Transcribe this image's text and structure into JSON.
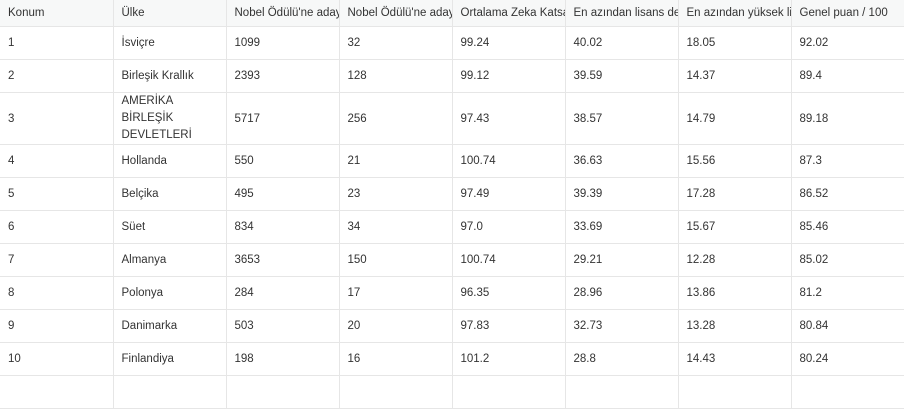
{
  "table": {
    "columns": [
      "Konum",
      "Ülke",
      "Nobel Ödülü'ne aday g",
      "Nobel Ödülü'ne aday g",
      "Ortalama Zeka Katsay",
      "En azından lisans dere",
      "En azından yüksek lisa",
      "Genel puan / 100"
    ],
    "rows": [
      [
        "1",
        "İsviçre",
        "1099",
        "32",
        "99.24",
        "40.02",
        "18.05",
        "92.02"
      ],
      [
        "2",
        "Birleşik Krallık",
        "2393",
        "128",
        "99.12",
        "39.59",
        "14.37",
        "89.4"
      ],
      [
        "3",
        "AMERİKA BİRLEŞİK DEVLETLERİ",
        "5717",
        "256",
        "97.43",
        "38.57",
        "14.79",
        "89.18"
      ],
      [
        "4",
        "Hollanda",
        "550",
        "21",
        "100.74",
        "36.63",
        "15.56",
        "87.3"
      ],
      [
        "5",
        "Belçika",
        "495",
        "23",
        "97.49",
        "39.39",
        "17.28",
        "86.52"
      ],
      [
        "6",
        "Süet",
        "834",
        "34",
        "97.0",
        "33.69",
        "15.67",
        "85.46"
      ],
      [
        "7",
        "Almanya",
        "3653",
        "150",
        "100.74",
        "29.21",
        "12.28",
        "85.02"
      ],
      [
        "8",
        "Polonya",
        "284",
        "17",
        "96.35",
        "28.96",
        "13.86",
        "81.2"
      ],
      [
        "9",
        "Danimarka",
        "503",
        "20",
        "97.83",
        "32.73",
        "13.28",
        "80.84"
      ],
      [
        "10",
        "Finlandiya",
        "198",
        "16",
        "101.2",
        "28.8",
        "14.43",
        "80.24"
      ]
    ]
  }
}
